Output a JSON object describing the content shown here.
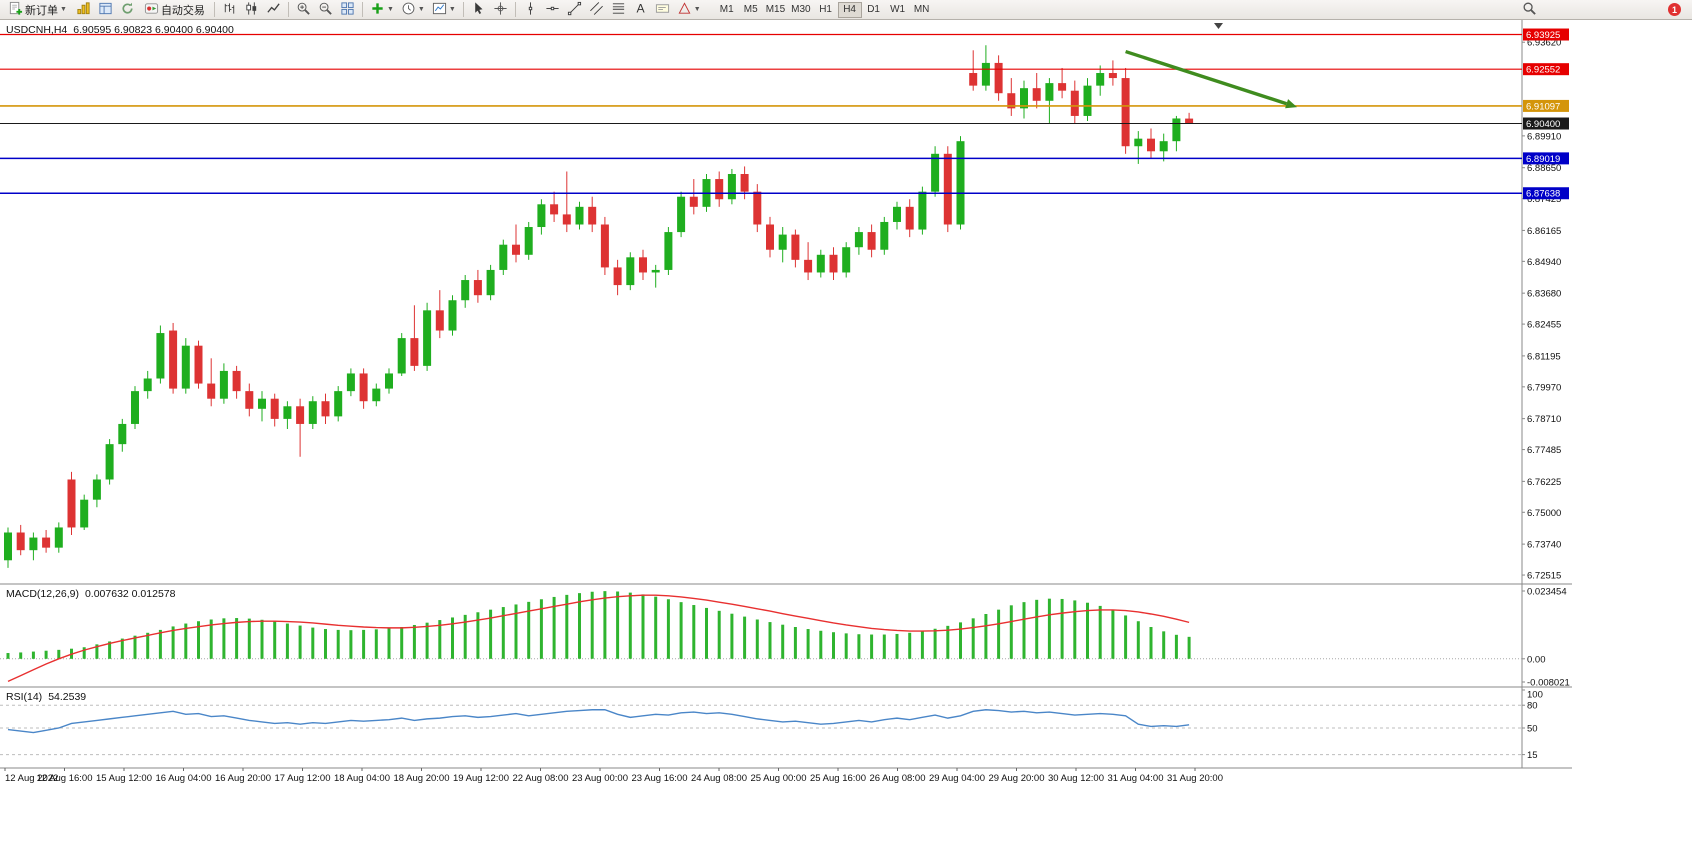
{
  "toolbar": {
    "new_order_label": "新订单",
    "auto_trading_label": "自动交易",
    "timeframes": [
      "M1",
      "M5",
      "M15",
      "M30",
      "H1",
      "H4",
      "D1",
      "W1",
      "MN"
    ],
    "active_timeframe": "H4",
    "notification_count": "1",
    "icon_names": [
      "new-order-icon",
      "profiles-icon",
      "market-watch-icon",
      "refresh-icon",
      "auto-trading-icon",
      "bar-chart-icon",
      "candlestick-chart-icon",
      "line-chart-icon",
      "zoom-in-icon",
      "zoom-out-icon",
      "tile-windows-icon",
      "indicators-icon",
      "periods-icon",
      "templates-icon",
      "cursor-icon",
      "crosshair-icon",
      "vertical-line-icon",
      "horizontal-line-icon",
      "trendline-icon",
      "channel-icon",
      "fibonacci-icon",
      "text-icon",
      "label-icon",
      "shapes-icon",
      "search-icon",
      "notification-badge"
    ]
  },
  "chart": {
    "title": {
      "symbol": "USDCNH,H4",
      "ohlc": "6.90595 6.90823 6.90400 6.90400"
    },
    "macd": {
      "name": "MACD(12,26,9)",
      "values": "0.007632 0.012578"
    },
    "rsi": {
      "name": "RSI(14)",
      "value": "54.2539"
    },
    "colors": {
      "candle_up": "#1fae1f",
      "candle_down": "#dd3333",
      "macd_bar": "#2fb42f",
      "macd_signal": "#e83030",
      "rsi_line": "#4a86c8",
      "resistance_red": "#e60000",
      "pivot_orange": "#d4950a",
      "support_blue": "#0000c8",
      "current_price": "#1a1a1a",
      "arrow_green": "#3f8c1f"
    }
  },
  "chart_data": {
    "type": "candlestick",
    "title": "USDCNH,H4",
    "symbol": "USDCNH",
    "timeframe": "H4",
    "price_range": [
      6.722,
      6.945
    ],
    "candles": [
      [
        6.731,
        6.744,
        6.728,
        6.742
      ],
      [
        6.742,
        6.745,
        6.733,
        6.735
      ],
      [
        6.735,
        6.742,
        6.731,
        6.74
      ],
      [
        6.74,
        6.743,
        6.734,
        6.736
      ],
      [
        6.736,
        6.746,
        6.734,
        6.744
      ],
      [
        6.763,
        6.766,
        6.741,
        6.744
      ],
      [
        6.744,
        6.757,
        6.743,
        6.755
      ],
      [
        6.755,
        6.765,
        6.752,
        6.763
      ],
      [
        6.763,
        6.779,
        6.761,
        6.777
      ],
      [
        6.777,
        6.787,
        6.774,
        6.785
      ],
      [
        6.785,
        6.8,
        6.783,
        6.798
      ],
      [
        6.798,
        6.806,
        6.795,
        6.803
      ],
      [
        6.803,
        6.824,
        6.801,
        6.821
      ],
      [
        6.822,
        6.825,
        6.797,
        6.799
      ],
      [
        6.799,
        6.819,
        6.797,
        6.816
      ],
      [
        6.816,
        6.818,
        6.799,
        6.801
      ],
      [
        6.801,
        6.811,
        6.792,
        6.795
      ],
      [
        6.795,
        6.809,
        6.793,
        6.806
      ],
      [
        6.806,
        6.808,
        6.795,
        6.798
      ],
      [
        6.798,
        6.801,
        6.788,
        6.791
      ],
      [
        6.791,
        6.798,
        6.786,
        6.795
      ],
      [
        6.795,
        6.797,
        6.784,
        6.787
      ],
      [
        6.787,
        6.794,
        6.783,
        6.792
      ],
      [
        6.792,
        6.795,
        6.772,
        6.785
      ],
      [
        6.785,
        6.796,
        6.783,
        6.794
      ],
      [
        6.794,
        6.797,
        6.785,
        6.788
      ],
      [
        6.788,
        6.8,
        6.786,
        6.798
      ],
      [
        6.798,
        6.807,
        6.796,
        6.805
      ],
      [
        6.805,
        6.807,
        6.791,
        6.794
      ],
      [
        6.794,
        6.801,
        6.792,
        6.799
      ],
      [
        6.799,
        6.807,
        6.797,
        6.805
      ],
      [
        6.805,
        6.821,
        6.804,
        6.819
      ],
      [
        6.819,
        6.832,
        6.806,
        6.808
      ],
      [
        6.808,
        6.833,
        6.806,
        6.83
      ],
      [
        6.83,
        6.838,
        6.819,
        6.822
      ],
      [
        6.822,
        6.836,
        6.82,
        6.834
      ],
      [
        6.834,
        6.844,
        6.831,
        6.842
      ],
      [
        6.842,
        6.846,
        6.833,
        6.836
      ],
      [
        6.836,
        6.848,
        6.834,
        6.846
      ],
      [
        6.846,
        6.858,
        6.844,
        6.856
      ],
      [
        6.856,
        6.864,
        6.849,
        6.852
      ],
      [
        6.852,
        6.865,
        6.85,
        6.863
      ],
      [
        6.863,
        6.874,
        6.86,
        6.872
      ],
      [
        6.872,
        6.877,
        6.865,
        6.868
      ],
      [
        6.868,
        6.885,
        6.861,
        6.864
      ],
      [
        6.864,
        6.873,
        6.862,
        6.871
      ],
      [
        6.871,
        6.875,
        6.861,
        6.864
      ],
      [
        6.864,
        6.867,
        6.844,
        6.847
      ],
      [
        6.847,
        6.85,
        6.836,
        6.84
      ],
      [
        6.84,
        6.853,
        6.838,
        6.851
      ],
      [
        6.851,
        6.854,
        6.842,
        6.845
      ],
      [
        6.845,
        6.848,
        6.839,
        6.846
      ],
      [
        6.846,
        6.863,
        6.844,
        6.861
      ],
      [
        6.861,
        6.877,
        6.859,
        6.875
      ],
      [
        6.875,
        6.882,
        6.868,
        6.871
      ],
      [
        6.871,
        6.884,
        6.869,
        6.882
      ],
      [
        6.882,
        6.885,
        6.871,
        6.874
      ],
      [
        6.874,
        6.886,
        6.872,
        6.884
      ],
      [
        6.884,
        6.887,
        6.874,
        6.877
      ],
      [
        6.877,
        6.88,
        6.861,
        6.864
      ],
      [
        6.864,
        6.867,
        6.851,
        6.854
      ],
      [
        6.854,
        6.863,
        6.849,
        6.86
      ],
      [
        6.86,
        6.862,
        6.847,
        6.85
      ],
      [
        6.85,
        6.857,
        6.842,
        6.845
      ],
      [
        6.845,
        6.854,
        6.843,
        6.852
      ],
      [
        6.852,
        6.855,
        6.842,
        6.845
      ],
      [
        6.845,
        6.857,
        6.843,
        6.855
      ],
      [
        6.855,
        6.863,
        6.852,
        6.861
      ],
      [
        6.861,
        6.864,
        6.851,
        6.854
      ],
      [
        6.854,
        6.867,
        6.852,
        6.865
      ],
      [
        6.865,
        6.873,
        6.862,
        6.871
      ],
      [
        6.871,
        6.874,
        6.859,
        6.862
      ],
      [
        6.862,
        6.879,
        6.86,
        6.877
      ],
      [
        6.877,
        6.895,
        6.875,
        6.892
      ],
      [
        6.892,
        6.895,
        6.861,
        6.864
      ],
      [
        6.864,
        6.899,
        6.862,
        6.897
      ],
      [
        6.924,
        6.933,
        6.917,
        6.919
      ],
      [
        6.919,
        6.935,
        6.917,
        6.928
      ],
      [
        6.928,
        6.931,
        6.913,
        6.916
      ],
      [
        6.916,
        6.922,
        6.907,
        6.91
      ],
      [
        6.91,
        6.921,
        6.906,
        6.918
      ],
      [
        6.918,
        6.924,
        6.91,
        6.913
      ],
      [
        6.913,
        6.922,
        6.904,
        6.92
      ],
      [
        6.92,
        6.926,
        6.914,
        6.917
      ],
      [
        6.917,
        6.921,
        6.904,
        6.907
      ],
      [
        6.907,
        6.922,
        6.905,
        6.919
      ],
      [
        6.919,
        6.927,
        6.915,
        6.924
      ],
      [
        6.924,
        6.929,
        6.919,
        6.922
      ],
      [
        6.922,
        6.926,
        6.892,
        6.895
      ],
      [
        6.895,
        6.901,
        6.888,
        6.898
      ],
      [
        6.898,
        6.902,
        6.89,
        6.893
      ],
      [
        6.893,
        6.9,
        6.889,
        6.897
      ],
      [
        6.897,
        6.907,
        6.893,
        6.906
      ],
      [
        6.90595,
        6.90823,
        6.904,
        6.904
      ]
    ],
    "horizontal_lines": [
      {
        "price": 6.93925,
        "label": "6.93925",
        "color": "#e60000",
        "width": 1.2
      },
      {
        "price": 6.92552,
        "label": "6.92552",
        "color": "#e60000",
        "width": 1.2
      },
      {
        "price": 6.91097,
        "label": "6.91097",
        "color": "#d4950a",
        "width": 1.6
      },
      {
        "price": 6.904,
        "label": "6.90400",
        "color": "#1a1a1a",
        "width": 1.0
      },
      {
        "price": 6.89019,
        "label": "6.89019",
        "color": "#0000c8",
        "width": 1.6
      },
      {
        "price": 6.87638,
        "label": "6.87638",
        "color": "#0000c8",
        "width": 1.6
      }
    ],
    "price_axis_labels": [
      "6.93620",
      "6.89910",
      "6.88650",
      "6.87425",
      "6.86165",
      "6.84940",
      "6.83680",
      "6.82455",
      "6.81195",
      "6.79970",
      "6.78710",
      "6.77485",
      "6.76225",
      "6.75000",
      "6.73740",
      "6.72515"
    ],
    "trend_arrow": {
      "from": {
        "index": 88,
        "price": 6.9325
      },
      "to": {
        "index": 101.5,
        "price": 6.9105
      },
      "color": "#3f8c1f"
    },
    "time_labels": [
      "12 Aug 2022",
      "12 Aug 16:00",
      "15 Aug 12:00",
      "16 Aug 04:00",
      "16 Aug 20:00",
      "17 Aug 12:00",
      "18 Aug 04:00",
      "18 Aug 20:00",
      "19 Aug 12:00",
      "22 Aug 08:00",
      "23 Aug 00:00",
      "23 Aug 16:00",
      "24 Aug 08:00",
      "25 Aug 00:00",
      "25 Aug 16:00",
      "26 Aug 08:00",
      "29 Aug 04:00",
      "29 Aug 20:00",
      "30 Aug 12:00",
      "31 Aug 04:00",
      "31 Aug 20:00"
    ],
    "macd": {
      "range": [
        -0.008021,
        0.023454
      ],
      "axis_labels": [
        {
          "text": "0.023454",
          "value": 0.023454
        },
        {
          "text": "0.00",
          "value": 0
        },
        {
          "text": "-0.008021",
          "value": -0.008021
        }
      ],
      "values": [
        0.002,
        0.0022,
        0.0025,
        0.0028,
        0.0031,
        0.0035,
        0.004,
        0.005,
        0.006,
        0.007,
        0.008,
        0.009,
        0.01,
        0.0112,
        0.0122,
        0.013,
        0.0136,
        0.014,
        0.0141,
        0.0139,
        0.0135,
        0.0129,
        0.0122,
        0.0115,
        0.0108,
        0.0103,
        0.01,
        0.0099,
        0.01,
        0.0102,
        0.0105,
        0.011,
        0.0117,
        0.0125,
        0.0134,
        0.0143,
        0.0152,
        0.0161,
        0.017,
        0.0179,
        0.0188,
        0.0197,
        0.0206,
        0.0214,
        0.0221,
        0.0227,
        0.0232,
        0.0234,
        0.0233,
        0.0229,
        0.0223,
        0.0215,
        0.0206,
        0.0196,
        0.0186,
        0.0176,
        0.0166,
        0.0156,
        0.0146,
        0.0136,
        0.0127,
        0.0118,
        0.011,
        0.0103,
        0.0097,
        0.0092,
        0.0088,
        0.0085,
        0.0084,
        0.0084,
        0.0086,
        0.009,
        0.0096,
        0.0104,
        0.0114,
        0.0126,
        0.014,
        0.0155,
        0.017,
        0.0185,
        0.0196,
        0.0204,
        0.0208,
        0.0207,
        0.0202,
        0.0194,
        0.0183,
        0.0168,
        0.015,
        0.013,
        0.011,
        0.0095,
        0.0083,
        0.0076
      ],
      "signal": [
        -0.0078,
        -0.0058,
        -0.0038,
        -0.0018,
        0.0,
        0.0016,
        0.003,
        0.0042,
        0.0053,
        0.0063,
        0.0072,
        0.0081,
        0.009,
        0.0098,
        0.0105,
        0.0111,
        0.0117,
        0.0122,
        0.0126,
        0.0129,
        0.013,
        0.013,
        0.0129,
        0.0127,
        0.0124,
        0.012,
        0.0116,
        0.0113,
        0.011,
        0.0108,
        0.0107,
        0.0107,
        0.0109,
        0.0112,
        0.0116,
        0.0121,
        0.0127,
        0.0134,
        0.0141,
        0.0149,
        0.0157,
        0.0165,
        0.0173,
        0.0181,
        0.0189,
        0.0197,
        0.0204,
        0.021,
        0.0215,
        0.0218,
        0.022,
        0.022,
        0.0218,
        0.0214,
        0.0209,
        0.0203,
        0.0196,
        0.0189,
        0.0181,
        0.0173,
        0.0165,
        0.0156,
        0.0148,
        0.014,
        0.0132,
        0.0124,
        0.0117,
        0.0111,
        0.0105,
        0.0101,
        0.0098,
        0.0096,
        0.0096,
        0.0097,
        0.0099,
        0.0103,
        0.0108,
        0.0114,
        0.0121,
        0.0129,
        0.0137,
        0.0145,
        0.0152,
        0.0158,
        0.0163,
        0.0167,
        0.0169,
        0.0169,
        0.0167,
        0.0162,
        0.0155,
        0.0147,
        0.0137,
        0.0126
      ]
    },
    "rsi": {
      "range": [
        0,
        100
      ],
      "levels": [
        80,
        50,
        15
      ],
      "axis_labels": [
        {
          "text": "100",
          "value": 100
        },
        {
          "text": "80",
          "value": 80
        },
        {
          "text": "50",
          "value": 50
        },
        {
          "text": "15",
          "value": 15
        }
      ],
      "values": [
        48,
        46,
        44,
        47,
        50,
        56,
        58,
        60,
        62,
        64,
        66,
        68,
        70,
        72,
        68,
        69,
        65,
        66,
        63,
        60,
        58,
        56,
        57,
        55,
        57,
        56,
        58,
        60,
        59,
        60,
        61,
        63,
        60,
        62,
        63,
        65,
        66,
        64,
        65,
        67,
        69,
        66,
        68,
        70,
        72,
        73,
        74,
        74,
        68,
        64,
        66,
        68,
        67,
        70,
        71,
        69,
        70,
        68,
        65,
        62,
        60,
        58,
        59,
        57,
        55,
        56,
        58,
        60,
        58,
        61,
        63,
        61,
        64,
        67,
        63,
        66,
        72,
        74,
        73,
        71,
        72,
        70,
        71,
        69,
        67,
        68,
        69,
        68,
        66,
        55,
        52,
        53,
        52,
        54.25
      ]
    }
  }
}
